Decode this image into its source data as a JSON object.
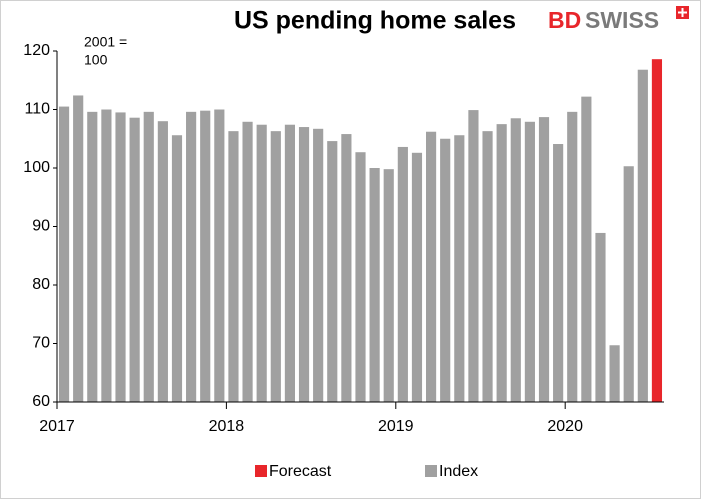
{
  "chart_data": {
    "type": "bar",
    "title": "US pending home sales",
    "logo": [
      "BD",
      "SWISS"
    ],
    "annotation": [
      "2001 =",
      "100"
    ],
    "categories": [
      "2017",
      null,
      null,
      null,
      null,
      null,
      null,
      null,
      null,
      null,
      null,
      null,
      "2018",
      null,
      null,
      null,
      null,
      null,
      null,
      null,
      null,
      null,
      null,
      null,
      "2019",
      null,
      null,
      null,
      null,
      null,
      null,
      null,
      null,
      null,
      null,
      null,
      "2020",
      null,
      null,
      null,
      null,
      null,
      null
    ],
    "series": [
      {
        "name": "Forecast",
        "color": "#e8262b",
        "values": [
          null,
          null,
          null,
          null,
          null,
          null,
          null,
          null,
          null,
          null,
          null,
          null,
          null,
          null,
          null,
          null,
          null,
          null,
          null,
          null,
          null,
          null,
          null,
          null,
          null,
          null,
          null,
          null,
          null,
          null,
          null,
          null,
          null,
          null,
          null,
          null,
          null,
          null,
          null,
          null,
          null,
          null,
          118.6
        ]
      },
      {
        "name": "Index",
        "color": "#a0a0a0",
        "values": [
          110.5,
          112.4,
          109.6,
          110.0,
          109.5,
          108.6,
          109.6,
          108.0,
          105.6,
          109.6,
          109.8,
          110.0,
          106.3,
          107.9,
          107.4,
          106.3,
          107.4,
          107.0,
          106.7,
          104.6,
          105.8,
          102.7,
          100.0,
          99.8,
          103.6,
          102.6,
          106.2,
          105.0,
          105.6,
          109.9,
          106.3,
          107.5,
          108.5,
          107.9,
          108.7,
          104.1,
          109.6,
          112.2,
          88.9,
          69.7,
          100.3,
          116.8,
          null
        ]
      }
    ],
    "ylim": [
      60,
      120
    ],
    "yticks": [
      60,
      70,
      80,
      90,
      100,
      110,
      120
    ],
    "grid": false,
    "legend": "bottom"
  }
}
